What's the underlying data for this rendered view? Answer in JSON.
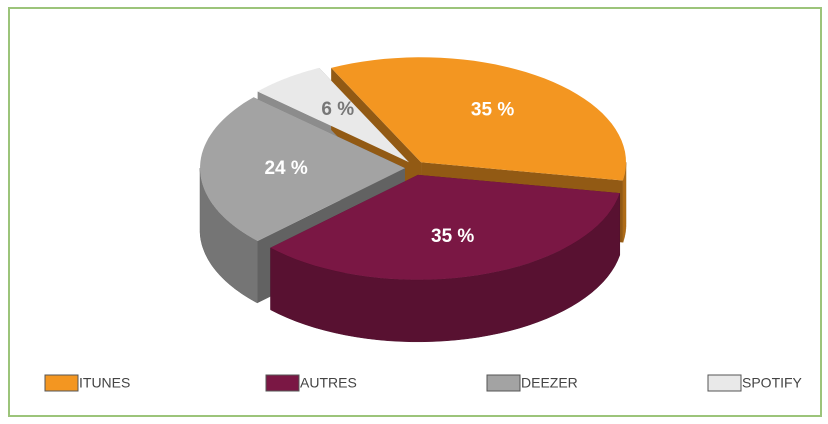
{
  "chart_data": {
    "type": "pie",
    "categories": [
      "ITUNES",
      "AUTRES",
      "DEEZER",
      "SPOTIFY"
    ],
    "values": [
      35,
      35,
      24,
      6
    ],
    "value_labels": [
      "35 %",
      "35 %",
      "24 %",
      "6 %"
    ],
    "colors": [
      "#f39621",
      "#7a1744",
      "#a3a3a3",
      "#e9e9e9"
    ],
    "legend": "bottom"
  }
}
